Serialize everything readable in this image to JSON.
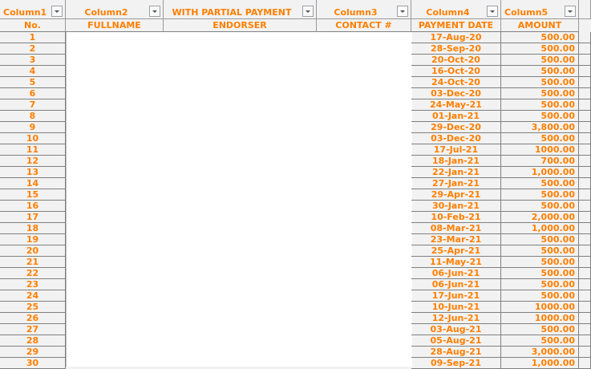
{
  "headers": [
    {
      "label": "Column1",
      "sub": "No."
    },
    {
      "label": "Column2",
      "sub": "FULLNAME"
    },
    {
      "label": "WITH PARTIAL PAYMENT",
      "sub": "ENDORSER"
    },
    {
      "label": "Column3",
      "sub": "CONTACT #"
    },
    {
      "label": "Column4",
      "sub": "PAYMENT DATE"
    },
    {
      "label": "Column5",
      "sub": "AMOUNT"
    }
  ],
  "rows": [
    {
      "no": "1",
      "date": "17-Aug-20",
      "amount": "500.00"
    },
    {
      "no": "2",
      "date": "28-Sep-20",
      "amount": "500.00"
    },
    {
      "no": "3",
      "date": "20-Oct-20",
      "amount": "500.00"
    },
    {
      "no": "4",
      "date": "16-Oct-20",
      "amount": "500.00"
    },
    {
      "no": "5",
      "date": "24-Oct-20",
      "amount": "500.00"
    },
    {
      "no": "6",
      "date": "03-Dec-20",
      "amount": "500.00"
    },
    {
      "no": "7",
      "date": "24-May-21",
      "amount": "500.00"
    },
    {
      "no": "8",
      "date": "01-Jan-21",
      "amount": "500.00"
    },
    {
      "no": "9",
      "date": "29-Dec-20",
      "amount": "3,800.00"
    },
    {
      "no": "10",
      "date": "03-Dec-20",
      "amount": "500.00"
    },
    {
      "no": "11",
      "date": "17-Jul-21",
      "amount": "1000.00"
    },
    {
      "no": "12",
      "date": "18-Jan-21",
      "amount": "700.00"
    },
    {
      "no": "13",
      "date": "22-Jan-21",
      "amount": "1,000.00"
    },
    {
      "no": "14",
      "date": "27-Jan-21",
      "amount": "500.00"
    },
    {
      "no": "15",
      "date": "29-Apr-21",
      "amount": "500.00"
    },
    {
      "no": "16",
      "date": "30-Jan-21",
      "amount": "500.00"
    },
    {
      "no": "17",
      "date": "10-Feb-21",
      "amount": "2,000.00"
    },
    {
      "no": "18",
      "date": "08-Mar-21",
      "amount": "1,000.00"
    },
    {
      "no": "19",
      "date": "23-Mar-21",
      "amount": "500.00"
    },
    {
      "no": "20",
      "date": "25-Apr-21",
      "amount": "500.00"
    },
    {
      "no": "21",
      "date": "11-May-21",
      "amount": "500.00"
    },
    {
      "no": "22",
      "date": "06-Jun-21",
      "amount": "500.00"
    },
    {
      "no": "23",
      "date": "06-Jun-21",
      "amount": "500.00"
    },
    {
      "no": "24",
      "date": "17-Jun-21",
      "amount": "500.00"
    },
    {
      "no": "25",
      "date": "10-Jun-21",
      "amount": "1000.00"
    },
    {
      "no": "26",
      "date": "12-Jun-21",
      "amount": "1000.00"
    },
    {
      "no": "27",
      "date": "03-Aug-21",
      "amount": "500.00"
    },
    {
      "no": "28",
      "date": "05-Aug-21",
      "amount": "500.00"
    },
    {
      "no": "29",
      "date": "28-Aug-21",
      "amount": "3,000.00"
    },
    {
      "no": "30",
      "date": "09-Sep-21",
      "amount": "1,000.00"
    }
  ]
}
